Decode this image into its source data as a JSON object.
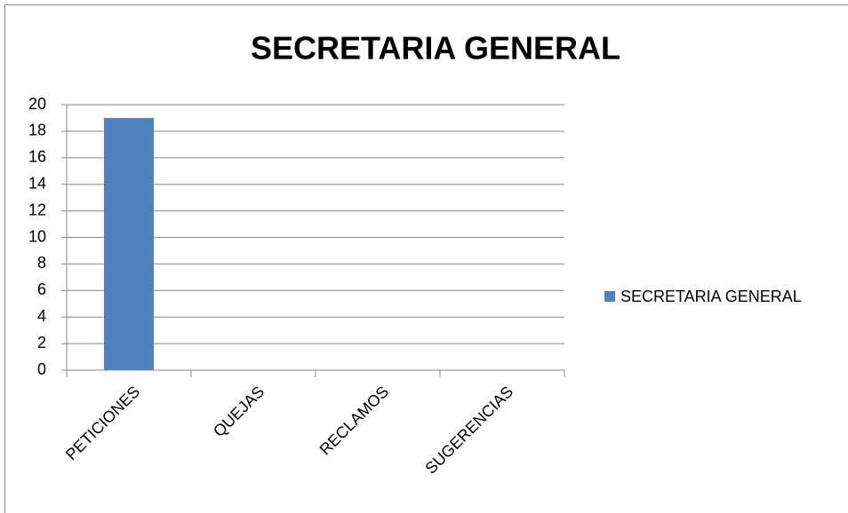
{
  "chart_data": {
    "type": "bar",
    "title": "SECRETARIA GENERAL",
    "categories": [
      "PETICIONES",
      "QUEJAS",
      "RECLAMOS",
      "SUGERENCIAS"
    ],
    "series": [
      {
        "name": "SECRETARIA GENERAL",
        "color": "#4f81bd",
        "values": [
          19,
          0,
          0,
          0
        ]
      }
    ],
    "ylim": [
      0,
      20
    ],
    "yticks": [
      0,
      2,
      4,
      6,
      8,
      10,
      12,
      14,
      16,
      18,
      20
    ],
    "grid": true,
    "legend": "right"
  }
}
